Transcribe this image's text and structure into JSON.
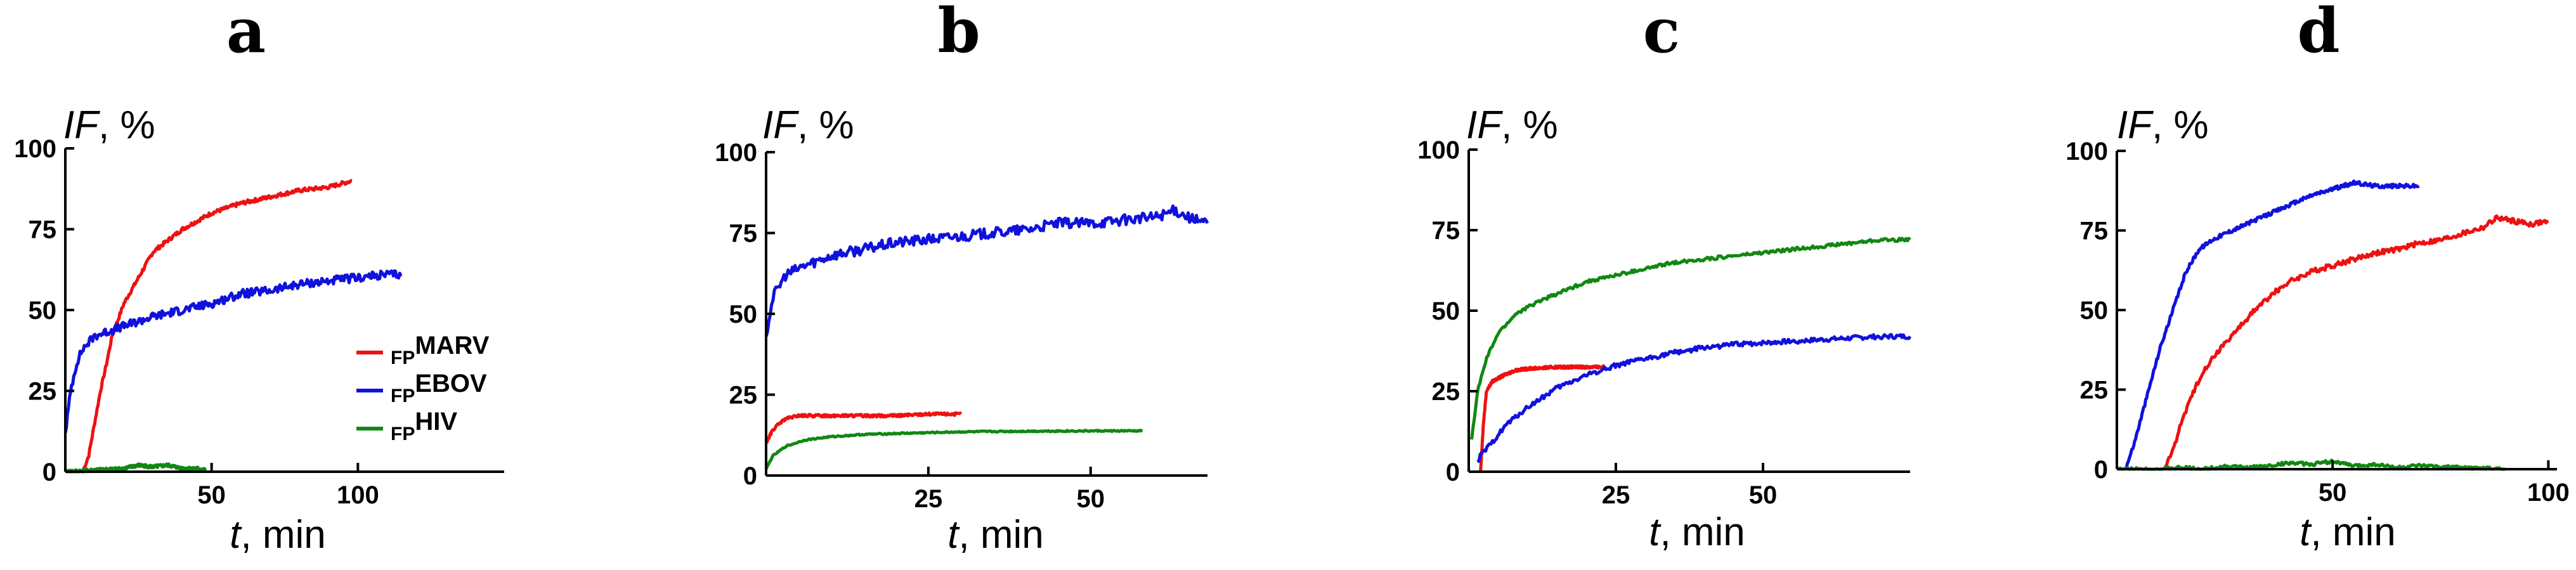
{
  "colors": {
    "MARV": "#ee1111",
    "EBOV": "#1111dd",
    "HIV": "#118811",
    "axis": "#000000"
  },
  "legend": {
    "items": [
      {
        "key": "MARV",
        "sub": "FP",
        "main": "MARV"
      },
      {
        "key": "EBOV",
        "sub": "FP",
        "main": "EBOV"
      },
      {
        "key": "HIV",
        "sub": "FP",
        "main": "HIV"
      }
    ]
  },
  "chart_data": [
    {
      "type": "line",
      "panel": "a",
      "ylabel": {
        "italic": "IF",
        "rest": ", %"
      },
      "xlabel": {
        "italic": "t",
        "rest": ", min"
      },
      "xlim": [
        0,
        150
      ],
      "ylim": [
        0,
        100
      ],
      "xticks": [
        50,
        100
      ],
      "yticks": [
        0,
        25,
        50,
        75,
        100
      ],
      "series": [
        {
          "key": "MARV",
          "noise": 0.6,
          "points": [
            [
              6,
              0
            ],
            [
              8,
              5
            ],
            [
              10,
              15
            ],
            [
              12,
              25
            ],
            [
              14,
              33
            ],
            [
              16,
              42
            ],
            [
              20,
              52
            ],
            [
              25,
              60
            ],
            [
              30,
              68
            ],
            [
              40,
              75
            ],
            [
              50,
              80
            ],
            [
              60,
              83
            ],
            [
              70,
              85
            ],
            [
              80,
              87
            ],
            [
              90,
              88
            ],
            [
              98,
              90
            ]
          ]
        },
        {
          "key": "EBOV",
          "noise": 1.3,
          "points": [
            [
              0,
              12
            ],
            [
              2,
              26
            ],
            [
              4,
              34
            ],
            [
              6,
              38
            ],
            [
              10,
              42
            ],
            [
              20,
              45
            ],
            [
              30,
              48
            ],
            [
              40,
              50
            ],
            [
              50,
              52
            ],
            [
              60,
              55
            ],
            [
              70,
              56
            ],
            [
              80,
              58
            ],
            [
              90,
              59
            ],
            [
              100,
              60
            ],
            [
              110,
              61
            ],
            [
              115,
              61
            ]
          ]
        },
        {
          "key": "HIV",
          "noise": 0.5,
          "points": [
            [
              0,
              0
            ],
            [
              10,
              0.5
            ],
            [
              20,
              1
            ],
            [
              25,
              2
            ],
            [
              30,
              1.5
            ],
            [
              35,
              2
            ],
            [
              40,
              1
            ],
            [
              45,
              1
            ],
            [
              48,
              0.5
            ]
          ]
        }
      ]
    },
    {
      "type": "line",
      "panel": "b",
      "ylabel": {
        "italic": "IF",
        "rest": ", %"
      },
      "xlabel": {
        "italic": "t",
        "rest": ", min"
      },
      "xlim": [
        0,
        68
      ],
      "ylim": [
        0,
        100
      ],
      "xticks": [
        25,
        50
      ],
      "yticks": [
        0,
        25,
        50,
        75,
        100
      ],
      "series": [
        {
          "key": "MARV",
          "noise": 0.4,
          "points": [
            [
              0,
              10
            ],
            [
              1,
              14
            ],
            [
              2,
              16
            ],
            [
              3,
              17.5
            ],
            [
              5,
              18.5
            ],
            [
              10,
              18.5
            ],
            [
              15,
              18.5
            ],
            [
              20,
              18.5
            ],
            [
              25,
              19
            ],
            [
              30,
              19
            ]
          ]
        },
        {
          "key": "EBOV",
          "noise": 1.6,
          "points": [
            [
              0,
              43
            ],
            [
              1,
              55
            ],
            [
              3,
              62
            ],
            [
              6,
              65
            ],
            [
              10,
              68
            ],
            [
              15,
              70
            ],
            [
              20,
              72
            ],
            [
              25,
              73
            ],
            [
              30,
              74
            ],
            [
              35,
              75
            ],
            [
              40,
              76
            ],
            [
              45,
              78
            ],
            [
              50,
              78
            ],
            [
              55,
              79
            ],
            [
              60,
              80
            ],
            [
              63,
              82
            ],
            [
              66,
              79
            ],
            [
              68,
              78
            ]
          ]
        },
        {
          "key": "HIV",
          "noise": 0.2,
          "points": [
            [
              0,
              2
            ],
            [
              1,
              6
            ],
            [
              3,
              9
            ],
            [
              6,
              11
            ],
            [
              10,
              12
            ],
            [
              15,
              12.7
            ],
            [
              20,
              13
            ],
            [
              30,
              13.5
            ],
            [
              40,
              13.7
            ],
            [
              50,
              13.8
            ],
            [
              58,
              13.8
            ]
          ]
        }
      ]
    },
    {
      "type": "line",
      "panel": "c",
      "ylabel": {
        "italic": "IF",
        "rest": ", %"
      },
      "xlabel": {
        "italic": "t",
        "rest": ", min"
      },
      "xlim": [
        0,
        75
      ],
      "ylim": [
        0,
        100
      ],
      "xticks": [
        25,
        50
      ],
      "yticks": [
        0,
        25,
        50,
        75,
        100
      ],
      "series": [
        {
          "key": "MARV",
          "noise": 0.4,
          "points": [
            [
              2,
              0
            ],
            [
              2.5,
              15
            ],
            [
              3,
              25
            ],
            [
              4,
              28
            ],
            [
              6,
              30
            ],
            [
              8,
              31.5
            ],
            [
              10,
              32
            ],
            [
              15,
              32.5
            ],
            [
              20,
              32.5
            ],
            [
              23,
              32.5
            ]
          ]
        },
        {
          "key": "EBOV",
          "noise": 0.7,
          "points": [
            [
              1.5,
              3
            ],
            [
              2,
              5
            ],
            [
              4,
              9
            ],
            [
              6,
              14
            ],
            [
              10,
              20
            ],
            [
              15,
              26
            ],
            [
              20,
              30
            ],
            [
              25,
              33
            ],
            [
              30,
              35
            ],
            [
              35,
              37
            ],
            [
              40,
              38.5
            ],
            [
              45,
              39.5
            ],
            [
              50,
              40
            ],
            [
              55,
              40.5
            ],
            [
              60,
              41
            ],
            [
              65,
              41.5
            ],
            [
              70,
              42
            ],
            [
              75,
              42
            ]
          ]
        },
        {
          "key": "HIV",
          "noise": 0.5,
          "points": [
            [
              0.5,
              10
            ],
            [
              1.5,
              25
            ],
            [
              3,
              35
            ],
            [
              5,
              43
            ],
            [
              8,
              49
            ],
            [
              12,
              53
            ],
            [
              16,
              56
            ],
            [
              20,
              59
            ],
            [
              25,
              61
            ],
            [
              30,
              63
            ],
            [
              35,
              65
            ],
            [
              40,
              66
            ],
            [
              45,
              67
            ],
            [
              50,
              68
            ],
            [
              55,
              69
            ],
            [
              60,
              70
            ],
            [
              65,
              71
            ],
            [
              70,
              72
            ],
            [
              75,
              72
            ]
          ]
        }
      ]
    },
    {
      "type": "line",
      "panel": "d",
      "ylabel": {
        "italic": "IF",
        "rest": ", %"
      },
      "xlabel": {
        "italic": "t",
        "rest": ", min"
      },
      "xlim": [
        0,
        102
      ],
      "ylim": [
        0,
        100
      ],
      "xticks": [
        50,
        100
      ],
      "yticks": [
        0,
        25,
        50,
        75,
        100
      ],
      "series": [
        {
          "key": "MARV",
          "noise": 0.8,
          "points": [
            [
              11,
              0
            ],
            [
              13,
              6
            ],
            [
              15,
              15
            ],
            [
              18,
              25
            ],
            [
              20,
              31
            ],
            [
              24,
              38
            ],
            [
              28,
              44
            ],
            [
              32,
              50
            ],
            [
              36,
              55
            ],
            [
              40,
              59
            ],
            [
              45,
              62
            ],
            [
              50,
              64
            ],
            [
              55,
              66
            ],
            [
              60,
              68
            ],
            [
              65,
              69
            ],
            [
              70,
              71
            ],
            [
              75,
              72
            ],
            [
              80,
              74
            ],
            [
              85,
              76
            ],
            [
              88,
              79
            ],
            [
              92,
              78
            ],
            [
              96,
              77
            ],
            [
              100,
              78
            ]
          ]
        },
        {
          "key": "EBOV",
          "noise": 0.6,
          "points": [
            [
              2,
              0
            ],
            [
              4,
              8
            ],
            [
              6,
              18
            ],
            [
              8,
              28
            ],
            [
              10,
              38
            ],
            [
              13,
              50
            ],
            [
              16,
              62
            ],
            [
              19,
              69
            ],
            [
              22,
              72
            ],
            [
              25,
              74
            ],
            [
              30,
              77
            ],
            [
              35,
              80
            ],
            [
              40,
              83
            ],
            [
              45,
              86
            ],
            [
              50,
              88
            ],
            [
              55,
              90
            ],
            [
              60,
              89
            ],
            [
              65,
              89
            ],
            [
              70,
              89
            ]
          ]
        },
        {
          "key": "HIV",
          "noise": 0.5,
          "points": [
            [
              0,
              0
            ],
            [
              10,
              0
            ],
            [
              15,
              0.5
            ],
            [
              20,
              0
            ],
            [
              25,
              1
            ],
            [
              30,
              0.5
            ],
            [
              35,
              1
            ],
            [
              40,
              2
            ],
            [
              45,
              1.5
            ],
            [
              50,
              2.5
            ],
            [
              55,
              1
            ],
            [
              60,
              1.5
            ],
            [
              65,
              0.5
            ],
            [
              70,
              1
            ],
            [
              80,
              0.5
            ],
            [
              90,
              0
            ]
          ]
        }
      ]
    }
  ]
}
